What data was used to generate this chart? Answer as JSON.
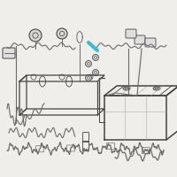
{
  "bg_color": "#f0eeea",
  "highlight_color": "#3bbfcf",
  "line_color": "#6a6a6a",
  "dark_line": "#444444",
  "fig_w": 2.0,
  "fig_h": 2.0,
  "dpi": 100
}
